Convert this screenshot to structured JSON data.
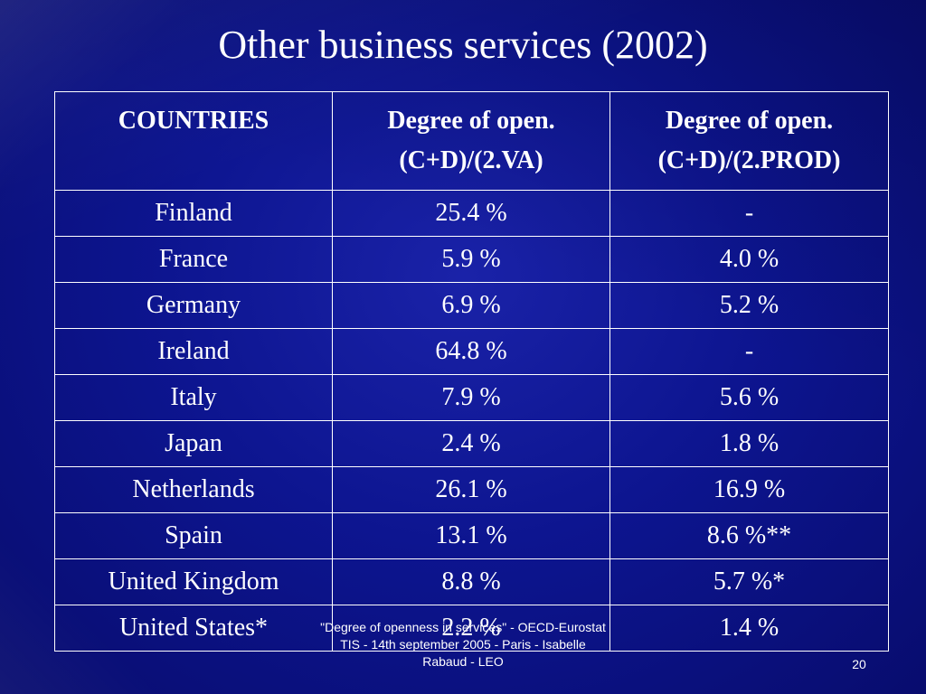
{
  "slide": {
    "title": "Other business services (2002)",
    "footer": "\"Degree of openness in services\" - OECD-Eurostat  TIS - 14th september 2005 - Paris - Isabelle Rabaud  - LEO",
    "page_number": "20"
  },
  "table": {
    "headers": [
      {
        "line1": "COUNTRIES",
        "line2": ""
      },
      {
        "line1": "Degree of open.",
        "line2": "(C+D)/(2.VA)"
      },
      {
        "line1": "Degree of open.",
        "line2": "(C+D)/(2.PROD)"
      }
    ],
    "rows": [
      {
        "country": "Finland",
        "va": "25.4 %",
        "prod": "-"
      },
      {
        "country": "France",
        "va": "5.9 %",
        "prod": "4.0 %"
      },
      {
        "country": "Germany",
        "va": "6.9 %",
        "prod": "5.2 %"
      },
      {
        "country": "Ireland",
        "va": "64.8 %",
        "prod": "-"
      },
      {
        "country": "Italy",
        "va": "7.9 %",
        "prod": "5.6 %"
      },
      {
        "country": "Japan",
        "va": "2.4 %",
        "prod": "1.8 %"
      },
      {
        "country": "Netherlands",
        "va": "26.1 %",
        "prod": "16.9 %"
      },
      {
        "country": "Spain",
        "va": "13.1 %",
        "prod": "8.6 %**"
      },
      {
        "country": "United Kingdom",
        "va": "8.8 %",
        "prod": "5.7 %*"
      },
      {
        "country": "United States*",
        "va": "2.2 %",
        "prod": "1.4 %"
      }
    ]
  }
}
